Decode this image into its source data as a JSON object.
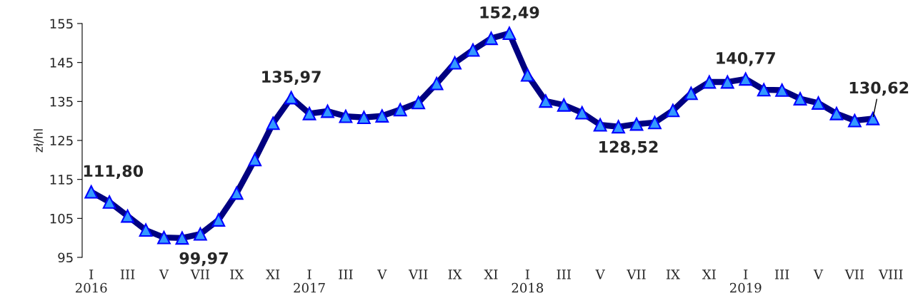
{
  "chart_data": {
    "type": "line",
    "ylabel": "zł/hl",
    "categories": [
      "I\n2016",
      null,
      "III",
      null,
      "V",
      null,
      "VII",
      null,
      "IX",
      null,
      "XI",
      null,
      "I\n2017",
      null,
      "III",
      null,
      "V",
      null,
      "VII",
      null,
      "IX",
      null,
      "XI",
      null,
      "I\n2018",
      null,
      "III",
      null,
      "V",
      null,
      "VII",
      null,
      "IX",
      null,
      "XI",
      null,
      "I\n2019",
      null,
      "III",
      null,
      "V",
      null,
      "VII",
      null,
      "VIII"
    ],
    "series": [
      {
        "color": "#000080",
        "values": [
          111.8,
          109.2,
          105.6,
          102.0,
          100.1,
          99.97,
          101.0,
          104.6,
          111.5,
          120.1,
          129.4,
          135.97,
          131.9,
          132.5,
          131.2,
          130.9,
          131.3,
          132.9,
          134.7,
          139.6,
          144.9,
          148.2,
          151.2,
          152.49,
          141.8,
          135.1,
          134.1,
          132.1,
          129.0,
          128.52,
          129.2,
          129.6,
          132.7,
          137.1,
          140.0,
          140.0,
          140.77,
          138.0,
          137.9,
          135.7,
          134.6,
          131.9,
          130.1,
          130.62,
          null
        ],
        "value_labels": [
          "111,80",
          null,
          null,
          null,
          null,
          "99,97",
          null,
          null,
          null,
          null,
          null,
          "135,97",
          null,
          null,
          null,
          null,
          null,
          null,
          null,
          null,
          null,
          null,
          null,
          "152,49",
          null,
          null,
          null,
          null,
          null,
          "128,52",
          null,
          null,
          null,
          null,
          null,
          null,
          "140,77",
          null,
          null,
          null,
          null,
          null,
          null,
          "130,62",
          null
        ]
      }
    ],
    "ylim": [
      95,
      155
    ],
    "yticks": [
      95,
      105,
      115,
      125,
      135,
      145,
      155
    ],
    "marker": "triangle",
    "line_style": "solid",
    "grid": false,
    "legend": false
  }
}
